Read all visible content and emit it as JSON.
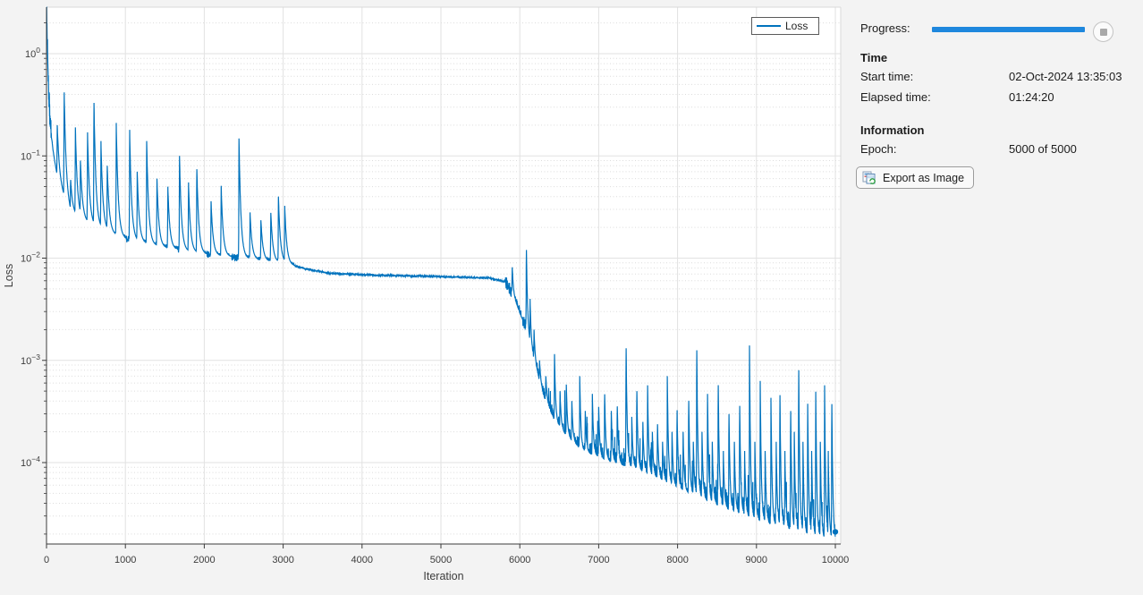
{
  "chart": {
    "xlabel": "Iteration",
    "ylabel": "Loss",
    "legend_label": "Loss",
    "line_color": "#0072bd",
    "x_ticks": [
      0,
      1000,
      2000,
      3000,
      4000,
      5000,
      6000,
      7000,
      8000,
      9000,
      10000
    ],
    "y_tick_exponents": [
      0,
      -1,
      -2,
      -3,
      -4
    ]
  },
  "chart_data": {
    "type": "line",
    "title": "",
    "xlabel": "Iteration",
    "ylabel": "Loss",
    "y_scale": "log",
    "x_range": [
      0,
      10000
    ],
    "y_range": [
      1.6e-05,
      2.85
    ],
    "grid": true,
    "legend": [
      "Loss"
    ],
    "legend_position": "northeast",
    "series": [
      {
        "name": "Loss",
        "baseline_points": [
          [
            0,
            2.8
          ],
          [
            10,
            1.2
          ],
          [
            25,
            0.5
          ],
          [
            45,
            0.22
          ],
          [
            80,
            0.1
          ],
          [
            150,
            0.055
          ],
          [
            300,
            0.028
          ],
          [
            600,
            0.0205
          ],
          [
            1000,
            0.0155
          ],
          [
            1500,
            0.0127
          ],
          [
            2000,
            0.011
          ],
          [
            2500,
            0.01
          ],
          [
            3000,
            0.009
          ],
          [
            3300,
            0.0078
          ],
          [
            3600,
            0.0071
          ],
          [
            4200,
            0.0068
          ],
          [
            5000,
            0.0066
          ],
          [
            5600,
            0.0064
          ],
          [
            5820,
            0.0059
          ],
          [
            5900,
            0.0046
          ],
          [
            6000,
            0.0029
          ],
          [
            6080,
            0.0021
          ],
          [
            6150,
            0.0012
          ],
          [
            6300,
            0.00045
          ],
          [
            6450,
            0.00025
          ],
          [
            6600,
            0.00018
          ],
          [
            6800,
            0.00013
          ],
          [
            7100,
            0.000105
          ],
          [
            7500,
            8.5e-05
          ],
          [
            8000,
            5.6e-05
          ],
          [
            8500,
            3.8e-05
          ],
          [
            9000,
            2.7e-05
          ],
          [
            9400,
            2.2e-05
          ],
          [
            9700,
            1.85e-05
          ],
          [
            10000,
            1.65e-05
          ]
        ],
        "spike_points": [
          [
            57,
            0.15
          ],
          [
            136,
            0.2
          ],
          [
            223,
            0.46
          ],
          [
            305,
            0.06
          ],
          [
            366,
            0.19
          ],
          [
            430,
            0.09
          ],
          [
            520,
            0.17
          ],
          [
            601,
            0.37
          ],
          [
            690,
            0.14
          ],
          [
            770,
            0.08
          ],
          [
            884,
            0.21
          ],
          [
            1054,
            0.18
          ],
          [
            1150,
            0.07
          ],
          [
            1270,
            0.14
          ],
          [
            1400,
            0.06
          ],
          [
            1538,
            0.05
          ],
          [
            1686,
            0.1
          ],
          [
            1800,
            0.055
          ],
          [
            1905,
            0.08
          ],
          [
            2086,
            0.036
          ],
          [
            2214,
            0.051
          ],
          [
            2440,
            0.148
          ],
          [
            2580,
            0.028
          ],
          [
            2718,
            0.0235
          ],
          [
            2843,
            0.029
          ],
          [
            2940,
            0.04
          ],
          [
            3020,
            0.0325
          ],
          [
            5903,
            0.0085
          ],
          [
            6083,
            0.0137
          ],
          [
            6130,
            0.004
          ],
          [
            6180,
            0.002
          ],
          [
            6250,
            0.001
          ],
          [
            6330,
            0.0007
          ],
          [
            6440,
            0.00115
          ],
          [
            6510,
            0.0005
          ],
          [
            6590,
            0.00058
          ],
          [
            6660,
            0.0004
          ],
          [
            6760,
            0.0007
          ],
          [
            6830,
            0.00032
          ],
          [
            6920,
            0.00047
          ],
          [
            7000,
            0.00035
          ],
          [
            7075,
            0.00052
          ],
          [
            7160,
            0.00032
          ],
          [
            7235,
            0.00039
          ],
          [
            7347,
            0.0016
          ],
          [
            7420,
            0.00028
          ],
          [
            7483,
            0.00057
          ],
          [
            7560,
            0.00025
          ],
          [
            7620,
            0.00057
          ],
          [
            7680,
            0.0002
          ],
          [
            7745,
            0.00026
          ],
          [
            7810,
            0.00016
          ],
          [
            7870,
            0.0007
          ],
          [
            7930,
            0.0002
          ],
          [
            7993,
            0.00037
          ],
          [
            8070,
            0.0002
          ],
          [
            8141,
            0.00047
          ],
          [
            8200,
            0.00016
          ],
          [
            8243,
            0.0016
          ],
          [
            8310,
            0.0002
          ],
          [
            8380,
            0.00047
          ],
          [
            8440,
            0.00016
          ],
          [
            8515,
            0.0007
          ],
          [
            8580,
            0.00013
          ],
          [
            8651,
            0.00035
          ],
          [
            8720,
            0.00016
          ],
          [
            8787,
            0.00043
          ],
          [
            8850,
            0.00013
          ],
          [
            8912,
            0.0014
          ],
          [
            8980,
            0.00016
          ],
          [
            9048,
            0.00063
          ],
          [
            9110,
            0.00013
          ],
          [
            9184,
            0.00043
          ],
          [
            9250,
            0.00016
          ],
          [
            9297,
            0.00057
          ],
          [
            9360,
            0.00013
          ],
          [
            9433,
            0.00039
          ],
          [
            9480,
            0.0002
          ],
          [
            9535,
            0.00105
          ],
          [
            9590,
            0.00016
          ],
          [
            9649,
            0.00047
          ],
          [
            9700,
            0.00013
          ],
          [
            9751,
            0.00063
          ],
          [
            9810,
            0.00016
          ],
          [
            9864,
            0.00057
          ],
          [
            9910,
            0.00013
          ],
          [
            9955,
            0.00047
          ]
        ],
        "noise_bands": [
          [
            0,
            60,
            0.12
          ],
          [
            60,
            3150,
            0.035
          ],
          [
            3150,
            5820,
            0.008
          ],
          [
            5820,
            6150,
            0.06
          ],
          [
            6150,
            6900,
            0.1
          ],
          [
            6900,
            8200,
            0.14
          ],
          [
            8200,
            10001,
            0.2
          ]
        ],
        "tail_bumps": {
          "from": 6300,
          "prob": 0.08,
          "max_log10": 0.5
        },
        "end_marker": [
          10000,
          2.1e-05
        ]
      }
    ]
  },
  "panel": {
    "progress_label": "Progress:",
    "progress_percent": 100,
    "progress_color": "#1e87dd",
    "time_header": "Time",
    "start_time_label": "Start time:",
    "start_time_value": "02-Oct-2024 13:35:03",
    "elapsed_time_label": "Elapsed time:",
    "elapsed_time_value": "01:24:20",
    "information_header": "Information",
    "epoch_label": "Epoch:",
    "epoch_value": "5000 of 5000",
    "export_button_label": "Export as Image"
  }
}
